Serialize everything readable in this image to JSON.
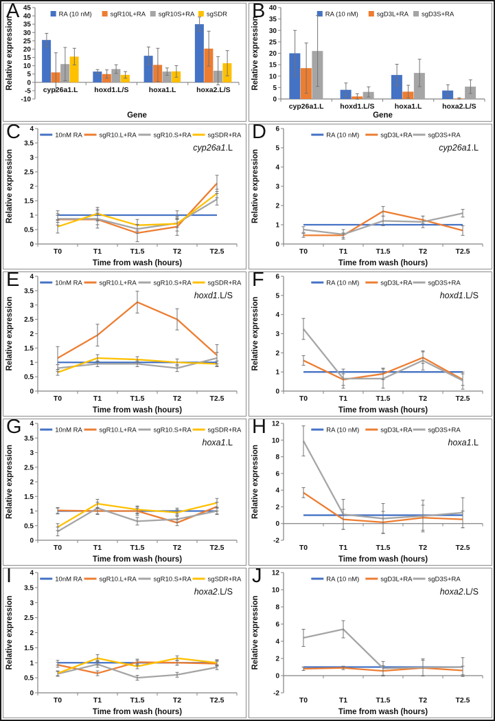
{
  "colors": {
    "blue": "#4472C4",
    "orange": "#ED7D31",
    "gray": "#A5A5A5",
    "yellow": "#FFC000",
    "error": "#737373",
    "axis": "#808080"
  },
  "chart_data": [
    {
      "id": "A",
      "type": "bar",
      "xlabel": "Gene",
      "ylabel": "Relative expression",
      "ylim": [
        -10,
        45
      ],
      "ytick_step": 5,
      "annotation": null,
      "categories": [
        "cyp26a1.L",
        "hoxd1.L/S",
        "hoxa1.L",
        "hoxa2.L/S"
      ],
      "series": [
        {
          "name": "RA (10 nM)",
          "color": "blue",
          "values": [
            25.5,
            6.5,
            16,
            35
          ],
          "errors": [
            4,
            1.2,
            5.3,
            4.3
          ]
        },
        {
          "name": "sgR10L+RA",
          "color": "orange",
          "values": [
            6,
            5,
            10.5,
            20.3
          ],
          "errors": [
            11.8,
            2.5,
            10,
            10.5
          ]
        },
        {
          "name": "sgR10S+RA",
          "color": "gray",
          "values": [
            11,
            8,
            6.5,
            7
          ],
          "errors": [
            10,
            2.6,
            2.2,
            8.5
          ]
        },
        {
          "name": "sgSDR",
          "color": "yellow",
          "values": [
            15.5,
            4.5,
            6.6,
            11.5
          ],
          "errors": [
            5,
            2,
            3.5,
            7.6
          ]
        }
      ]
    },
    {
      "id": "B",
      "type": "bar",
      "xlabel": "Gene",
      "ylabel": "Relative expression",
      "ylim": [
        0,
        40
      ],
      "ytick_step": 5,
      "annotation": null,
      "categories": [
        "cyp26a1.L",
        "hoxd1.L/S",
        "hoxa1.L",
        "hoxa2.L/S"
      ],
      "series": [
        {
          "name": "RA (10 nM)",
          "color": "blue",
          "values": [
            20,
            4,
            10.5,
            3.7
          ],
          "errors": [
            10,
            3,
            4.7,
            2.5
          ]
        },
        {
          "name": "sgD3L+RA",
          "color": "orange",
          "values": [
            13.5,
            1.1,
            3.2,
            0.2
          ],
          "errors": [
            11,
            1.2,
            2.8,
            0.3
          ]
        },
        {
          "name": "sgD3S+RA",
          "color": "gray",
          "values": [
            21,
            3.1,
            11.4,
            5.4
          ],
          "errors": [
            15.5,
            2.2,
            6,
            3
          ]
        }
      ]
    },
    {
      "id": "C",
      "type": "line",
      "xlabel": "Time from wash (hours)",
      "ylabel": "Relative expression",
      "ylim": [
        0,
        4
      ],
      "ytick_step": 0.5,
      "annotation": {
        "italic": "cyp26a1",
        "plain": ".L"
      },
      "categories": [
        "T0",
        "T1",
        "T1.5",
        "T2",
        "T2.5"
      ],
      "series": [
        {
          "name": "10nM RA",
          "color": "blue",
          "values": [
            1,
            1,
            1,
            1,
            1
          ],
          "errors": [
            0.15,
            0.2,
            0,
            0.15,
            0
          ]
        },
        {
          "name": "sgR10.L+RA",
          "color": "orange",
          "values": [
            0.85,
            0.85,
            0.38,
            0.6,
            2.1
          ],
          "errors": [
            0.2,
            0.3,
            0.3,
            0.3,
            0.28
          ]
        },
        {
          "name": "sgR10.S+RA",
          "color": "gray",
          "values": [
            0.87,
            0.87,
            0.52,
            0.72,
            1.55
          ],
          "errors": [
            0.12,
            0.2,
            0.15,
            0.15,
            0.2
          ]
        },
        {
          "name": "sgSDR+RA",
          "color": "yellow",
          "values": [
            0.6,
            1.05,
            0.65,
            0.7,
            1.75
          ],
          "errors": [
            0.22,
            0.22,
            0.2,
            0.25,
            0.15
          ]
        }
      ]
    },
    {
      "id": "D",
      "type": "line",
      "xlabel": "Time from wash (hours)",
      "ylabel": "Relative expression",
      "ylim": [
        0,
        6
      ],
      "ytick_step": 1,
      "annotation": {
        "italic": "cyp26a1",
        "plain": ".L"
      },
      "categories": [
        "T0",
        "T1",
        "T1.5",
        "T2",
        "T2.5"
      ],
      "series": [
        {
          "name": "RA (10 nM)",
          "color": "blue",
          "values": [
            1,
            1,
            1,
            1,
            1
          ],
          "errors": [
            0,
            0,
            0,
            0,
            0
          ]
        },
        {
          "name": "sgD3L+RA",
          "color": "orange",
          "values": [
            0.45,
            0.45,
            1.7,
            1.25,
            0.7
          ],
          "errors": [
            0.1,
            0.12,
            0.25,
            0.2,
            0.25
          ]
        },
        {
          "name": "sgD3S+RA",
          "color": "gray",
          "values": [
            0.75,
            0.5,
            1.2,
            1.15,
            1.6
          ],
          "errors": [
            0.15,
            0.25,
            0.25,
            0.3,
            0.2
          ]
        }
      ]
    },
    {
      "id": "E",
      "type": "line",
      "xlabel": "Time from wash (hours)",
      "ylabel": "Relative expression",
      "ylim": [
        0,
        4
      ],
      "ytick_step": 0.5,
      "annotation": {
        "italic": "hoxd1",
        "plain": ".L/S"
      },
      "categories": [
        "T0",
        "T1",
        "T1.5",
        "T2",
        "T2.5"
      ],
      "series": [
        {
          "name": "10nM RA",
          "color": "blue",
          "values": [
            1,
            1,
            1,
            1,
            1
          ],
          "errors": [
            0,
            0,
            0,
            0,
            0
          ]
        },
        {
          "name": "sgR10.L+RA",
          "color": "orange",
          "values": [
            1.15,
            1.95,
            3.1,
            2.5,
            1.25
          ],
          "errors": [
            0.4,
            0.38,
            0.38,
            0.37,
            0.37
          ]
        },
        {
          "name": "sgR10.S+RA",
          "color": "gray",
          "values": [
            0.8,
            0.95,
            0.95,
            0.8,
            1.15
          ],
          "errors": [
            0.12,
            0.1,
            0.1,
            0.12,
            0.2
          ]
        },
        {
          "name": "sgSDR+RA",
          "color": "yellow",
          "values": [
            0.65,
            1.15,
            1.1,
            1.0,
            0.95
          ],
          "errors": [
            0.1,
            0.12,
            0.1,
            0.12,
            0.1
          ]
        }
      ]
    },
    {
      "id": "F",
      "type": "line",
      "xlabel": "Time from wash (hours)",
      "ylabel": "Relative expression",
      "ylim": [
        0,
        6
      ],
      "ytick_step": 1,
      "annotation": {
        "italic": "hoxd1",
        "plain": ".L/S"
      },
      "categories": [
        "T0",
        "T1",
        "T1.5",
        "T2",
        "T2.5"
      ],
      "series": [
        {
          "name": "RA (10 nM)",
          "color": "blue",
          "values": [
            1,
            1,
            1,
            1,
            1
          ],
          "errors": [
            0,
            0,
            0,
            0,
            0
          ]
        },
        {
          "name": "sgD3L+RA",
          "color": "orange",
          "values": [
            1.6,
            0.6,
            0.9,
            1.75,
            0.6
          ],
          "errors": [
            0.25,
            0.3,
            0.3,
            0.3,
            0.3
          ]
        },
        {
          "name": "sgD3S+RA",
          "color": "gray",
          "values": [
            3.25,
            0.65,
            0.65,
            1.6,
            0.55
          ],
          "errors": [
            0.55,
            0.5,
            0.5,
            0.5,
            0.45
          ]
        }
      ]
    },
    {
      "id": "G",
      "type": "line",
      "xlabel": "Time from wash (hours)",
      "ylabel": "Relative expression",
      "ylim": [
        0,
        4
      ],
      "ytick_step": 0.5,
      "annotation": {
        "italic": "hoxa1",
        "plain": ".L"
      },
      "categories": [
        "T0",
        "T1",
        "T1.5",
        "T2",
        "T2.5"
      ],
      "series": [
        {
          "name": "10nM RA",
          "color": "blue",
          "values": [
            1,
            1,
            1,
            1,
            1
          ],
          "errors": [
            0.1,
            0.1,
            0.1,
            0.1,
            0.1
          ]
        },
        {
          "name": "sgR10.L+RA",
          "color": "orange",
          "values": [
            1.02,
            1.0,
            1.0,
            0.6,
            1.15
          ],
          "errors": [
            0.1,
            0.12,
            0.15,
            0.1,
            0.15
          ]
        },
        {
          "name": "sgR10.S+RA",
          "color": "gray",
          "values": [
            0.3,
            1.1,
            0.65,
            0.72,
            1.0
          ],
          "errors": [
            0.15,
            0.2,
            0.13,
            0.1,
            0.12
          ]
        },
        {
          "name": "sgSDR+RA",
          "color": "yellow",
          "values": [
            0.45,
            1.25,
            1.05,
            0.95,
            1.28
          ],
          "errors": [
            0.12,
            0.15,
            0.12,
            0.1,
            0.15
          ]
        }
      ]
    },
    {
      "id": "H",
      "type": "line",
      "xlabel": "Time from wash (hours)",
      "ylabel": "Relative expression",
      "ylim": [
        -2,
        12
      ],
      "ytick_step": 2,
      "annotation": {
        "italic": "hoxa1",
        "plain": ".L"
      },
      "categories": [
        "T0",
        "T1",
        "T1.5",
        "T2",
        "T2.5"
      ],
      "series": [
        {
          "name": "RA (10 nM)",
          "color": "blue",
          "values": [
            1,
            1,
            1,
            1,
            1
          ],
          "errors": [
            0,
            0,
            0,
            0,
            0
          ]
        },
        {
          "name": "sgD3L+RA",
          "color": "orange",
          "values": [
            3.7,
            0.5,
            0.15,
            0.7,
            0.5
          ],
          "errors": [
            0.6,
            1.2,
            1.3,
            1.5,
            1.0
          ]
        },
        {
          "name": "sgD3S+RA",
          "color": "gray",
          "values": [
            9.9,
            1.1,
            0.6,
            0.9,
            1.3
          ],
          "errors": [
            1.8,
            1.8,
            1.8,
            1.9,
            1.8
          ]
        }
      ]
    },
    {
      "id": "I",
      "type": "line",
      "xlabel": "Time from wash (hours)",
      "ylabel": "Relative expression",
      "ylim": [
        0,
        4
      ],
      "ytick_step": 0.5,
      "annotation": {
        "italic": "hoxa2",
        "plain": ".L/S"
      },
      "categories": [
        "T0",
        "T1",
        "T1.5",
        "T2",
        "T2.5"
      ],
      "series": [
        {
          "name": "10nM RA",
          "color": "blue",
          "values": [
            1,
            1,
            1,
            1,
            1
          ],
          "errors": [
            0.08,
            0.08,
            0.08,
            0.08,
            0.08
          ]
        },
        {
          "name": "sgR10.L+RA",
          "color": "orange",
          "values": [
            0.93,
            0.65,
            1.02,
            1.0,
            0.97
          ],
          "errors": [
            0.08,
            0.08,
            0.1,
            0.08,
            0.08
          ]
        },
        {
          "name": "sgR10.S+RA",
          "color": "gray",
          "values": [
            0.63,
            0.95,
            0.5,
            0.6,
            0.85
          ],
          "errors": [
            0.08,
            0.1,
            0.08,
            0.08,
            0.08
          ]
        },
        {
          "name": "sgSDR+RA",
          "color": "yellow",
          "values": [
            0.65,
            1.15,
            0.88,
            1.15,
            1.0
          ],
          "errors": [
            0.08,
            0.12,
            0.08,
            0.08,
            0.1
          ]
        }
      ]
    },
    {
      "id": "J",
      "type": "line",
      "xlabel": "Time from wash (hours)",
      "ylabel": "Relative expression",
      "ylim": [
        -2,
        12
      ],
      "ytick_step": 2,
      "annotation": {
        "italic": "hoxa2",
        "plain": ".L/S"
      },
      "categories": [
        "T0",
        "T1",
        "T1.5",
        "T2",
        "T2.5"
      ],
      "series": [
        {
          "name": "RA (10 nM)",
          "color": "blue",
          "values": [
            1,
            1,
            1,
            1,
            1
          ],
          "errors": [
            0,
            0,
            0,
            0,
            0
          ]
        },
        {
          "name": "sgD3L+RA",
          "color": "orange",
          "values": [
            0.8,
            0.9,
            0.55,
            0.9,
            0.6
          ],
          "errors": [
            0.2,
            0.2,
            0.6,
            0.9,
            0.5
          ]
        },
        {
          "name": "sgD3S+RA",
          "color": "gray",
          "values": [
            4.4,
            5.4,
            0.85,
            0.95,
            1.0
          ],
          "errors": [
            1.0,
            1.0,
            0.8,
            1.0,
            1.1
          ]
        }
      ]
    }
  ]
}
